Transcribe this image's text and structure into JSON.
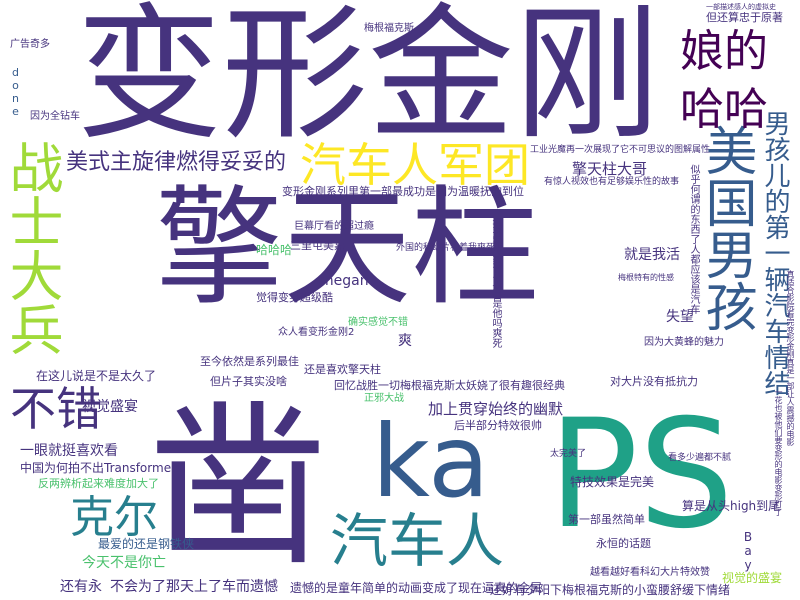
{
  "palette": {
    "darkviolet": "#440154",
    "indigo": "#46337e",
    "slate": "#365c8d",
    "teal": "#277f8e",
    "seagreen": "#1fa187",
    "green": "#4ac16d",
    "lime": "#a0da39",
    "yellow": "#fde725"
  },
  "words": [
    {
      "text": "擎天柱",
      "color": "indigo"
    },
    {
      "text": "变形金刚",
      "color": "indigo"
    },
    {
      "text": "PS",
      "color": "seagreen"
    },
    {
      "text": "ka",
      "color": "slate"
    },
    {
      "text": "凿",
      "color": "indigo"
    },
    {
      "text": "美国男孩",
      "color": "slate"
    },
    {
      "text": "战士大兵",
      "color": "lime"
    },
    {
      "text": "汽车人军团",
      "color": "yellow"
    },
    {
      "text": "汽车人",
      "color": "teal"
    },
    {
      "text": "不错",
      "color": "indigo"
    },
    {
      "text": "克尔",
      "color": "teal"
    },
    {
      "text": "娘的",
      "color": "darkviolet"
    },
    {
      "text": "哈哈",
      "color": "darkviolet"
    },
    {
      "text": "男孩儿的第一辆汽车情结",
      "color": "slate"
    },
    {
      "text": "美式主旋律燃得妥妥的",
      "color": "indigo"
    },
    {
      "text": "擎天柱大哥",
      "color": "indigo"
    },
    {
      "text": "变形金刚系列里第一部最成功是因为温暖抚的到位",
      "color": "indigo"
    },
    {
      "text": "加上贯穿始终的幽默",
      "color": "indigo"
    },
    {
      "text": "视觉盛宴",
      "color": "indigo"
    },
    {
      "text": "一眼就挺喜欢看",
      "color": "indigo"
    },
    {
      "text": "中国为何拍不出Transformers",
      "color": "indigo"
    },
    {
      "text": "反两辨析起来难度加大了",
      "color": "green"
    },
    {
      "text": "今天不是你亡",
      "color": "green"
    },
    {
      "text": "最爱的还是钢铁侠",
      "color": "slate"
    },
    {
      "text": "还有永",
      "color": "indigo"
    },
    {
      "text": "不会为了那天上了车而遗憾",
      "color": "indigo"
    },
    {
      "text": "遗憾的是童年简单的动画变成了现在逼真的金属",
      "color": "indigo"
    },
    {
      "text": "还好有夕阳下梅根福克斯的小蛮腰舒缓下情绪",
      "color": "indigo"
    },
    {
      "text": "越看越好看科幻大片特效赞",
      "color": "indigo"
    },
    {
      "text": "视觉的盛宴",
      "color": "lime"
    },
    {
      "text": "永恒的话题",
      "color": "indigo"
    },
    {
      "text": "第一部虽然简单",
      "color": "indigo"
    },
    {
      "text": "特技效果是完美",
      "color": "indigo"
    },
    {
      "text": "算是从头high到尾",
      "color": "indigo"
    },
    {
      "text": "Bay",
      "color": "indigo"
    },
    {
      "text": "回忆战胜一切梅根福克斯太妖娆了很有趣很经典",
      "color": "indigo"
    },
    {
      "text": "后半部分特效很帅",
      "color": "indigo"
    },
    {
      "text": "在这儿说是不是太久了",
      "color": "indigo"
    },
    {
      "text": "但片子其实没啥",
      "color": "indigo"
    },
    {
      "text": "至今依然是系列最佳",
      "color": "indigo"
    },
    {
      "text": "觉得变身超级酷",
      "color": "indigo"
    },
    {
      "text": "megan",
      "color": "indigo"
    },
    {
      "text": "三里屯美嘉",
      "color": "indigo"
    },
    {
      "text": "哈哈哈",
      "color": "green"
    },
    {
      "text": "就是我活",
      "color": "indigo"
    },
    {
      "text": "失望",
      "color": "indigo"
    },
    {
      "text": "对大片没有抵抗力",
      "color": "indigo"
    },
    {
      "text": "还是喜欢擎天柱",
      "color": "indigo"
    },
    {
      "text": "爽",
      "color": "indigo"
    },
    {
      "text": "正邪大战",
      "color": "green"
    },
    {
      "text": "因为全钻车",
      "color": "indigo"
    },
    {
      "text": "广告奇多",
      "color": "indigo"
    },
    {
      "text": "done",
      "color": "slate"
    },
    {
      "text": "梅根福克斯",
      "color": "indigo"
    },
    {
      "text": "但还算忠于原著",
      "color": "indigo"
    },
    {
      "text": "一部描述感人的虚拟史",
      "color": "indigo"
    },
    {
      "text": "巨幕厅看的超过瘾",
      "color": "indigo"
    },
    {
      "text": "众人看变形金刚2",
      "color": "indigo"
    },
    {
      "text": "确实感觉不错",
      "color": "green"
    },
    {
      "text": "工业光魔再一次展现了它不可思议的图解属性",
      "color": "indigo"
    },
    {
      "text": "有惊人视效也有足够娱乐性的故事",
      "color": "indigo"
    },
    {
      "text": "描述配乐那几段真是他吗爽死",
      "color": "indigo"
    },
    {
      "text": "外国的科幻片看着我爽死",
      "color": "indigo"
    },
    {
      "text": "似乎何谓的东西了人都应该是汽车",
      "color": "indigo"
    },
    {
      "text": "梅根特有的性感",
      "color": "indigo"
    },
    {
      "text": "因为大黄蜂的魅力",
      "color": "indigo"
    },
    {
      "text": "太完美了",
      "color": "indigo"
    },
    {
      "text": "看多少遍都不腻",
      "color": "indigo"
    },
    {
      "text": "真适合影院看完变形金刚真是一部让人震撼的电影",
      "color": "indigo"
    },
    {
      "text": "一花也被他们要变形的电影变形打了",
      "color": "indigo"
    }
  ]
}
